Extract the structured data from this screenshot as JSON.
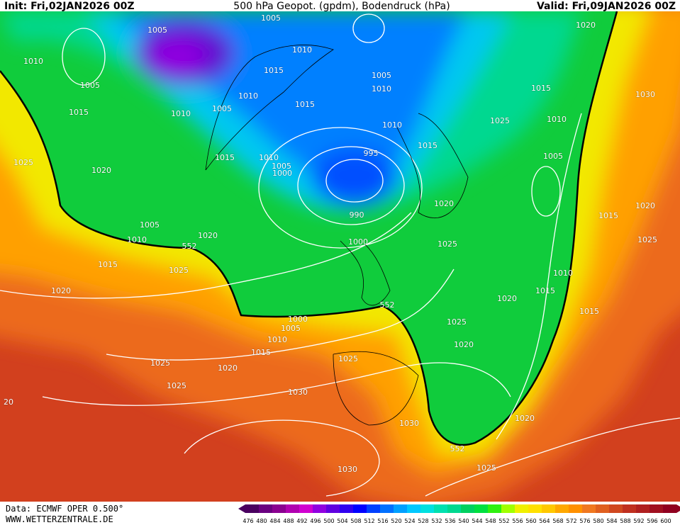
{
  "header": {
    "init": "Init: Fri,02JAN2026 00Z",
    "title": "500 hPa Geopot. (gpdm), Bodendruck (hPa)",
    "valid": "Valid: Fri,09JAN2026 00Z"
  },
  "footer": {
    "source": "Data: ECMWF OPER 0.500°",
    "site": "WWW.WETTERZENTRALE.DE"
  },
  "isobar_labels": [
    "1005",
    "1005",
    "1010",
    "1005",
    "1010",
    "1015",
    "1005",
    "1010",
    "1010",
    "1015",
    "1005",
    "1010",
    "1015",
    "1015",
    "1020",
    "1030",
    "1025",
    "1010",
    "1010",
    "995",
    "1015",
    "1010",
    "1005",
    "1000",
    "1015",
    "1025",
    "1020",
    "1005",
    "1020",
    "990",
    "1015",
    "1020",
    "1005",
    "1010",
    "1020",
    "552",
    "1000",
    "1025",
    "1025",
    "1015",
    "1025",
    "1010",
    "1020",
    "1015",
    "1020",
    "552",
    "1015",
    "1000",
    "1005",
    "1025",
    "1010",
    "1020",
    "1015",
    "1025",
    "1025",
    "1020",
    "1025",
    "1030",
    "20",
    "1020",
    "1030",
    "552",
    "1025",
    "1030"
  ],
  "colorbar": {
    "levels": [
      476,
      480,
      484,
      488,
      492,
      496,
      500,
      504,
      508,
      512,
      516,
      520,
      524,
      528,
      532,
      536,
      540,
      544,
      548,
      552,
      556,
      560,
      564,
      568,
      572,
      576,
      580,
      584,
      588,
      592,
      596,
      600
    ],
    "colors": [
      "#4a0060",
      "#6a0080",
      "#8a0090",
      "#b000b0",
      "#d000d0",
      "#9000e0",
      "#6000e0",
      "#3000f0",
      "#0000ff",
      "#0040ff",
      "#0070ff",
      "#00a0ff",
      "#00c8ff",
      "#00e0e0",
      "#00e0b0",
      "#00d890",
      "#00d060",
      "#00e040",
      "#30f010",
      "#a0ff00",
      "#f0f000",
      "#ffe000",
      "#ffc800",
      "#ffa800",
      "#ff9000",
      "#f07820",
      "#e06020",
      "#d04820",
      "#c03020",
      "#b02020",
      "#a01020",
      "#900020"
    ]
  }
}
